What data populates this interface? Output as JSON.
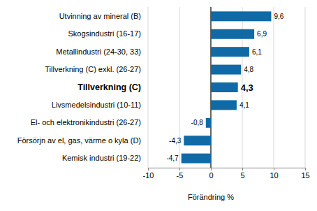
{
  "chart_data": {
    "type": "bar",
    "orientation": "horizontal",
    "categories": [
      "Utvinning av mineral (B)",
      "Skogsindustri (16-17)",
      "Metallindustri (24-30, 33)",
      "Tillverkning (C) exkl. (26-27)",
      "Tillverkning (C)",
      "Livsmedelsindustri (10-11)",
      "El- och elektronikindustri (26-27)",
      "Försörjn av el, gas, värme o kyla (D)",
      "Kemisk industri (19-22)"
    ],
    "values": [
      9.6,
      6.9,
      6.1,
      4.8,
      4.3,
      4.1,
      -0.8,
      -4.3,
      -4.7
    ],
    "value_labels": [
      "9,6",
      "6,9",
      "6,1",
      "4,8",
      "4,3",
      "4,1",
      "-0,8",
      "-4,3",
      "-4,7"
    ],
    "color": "#0f6aa6",
    "xlabel": "Förändring %",
    "xlim": [
      -10,
      15
    ],
    "xticks": [
      -10,
      -5,
      0,
      5,
      10,
      15
    ],
    "grid": true,
    "data_labels": true
  }
}
